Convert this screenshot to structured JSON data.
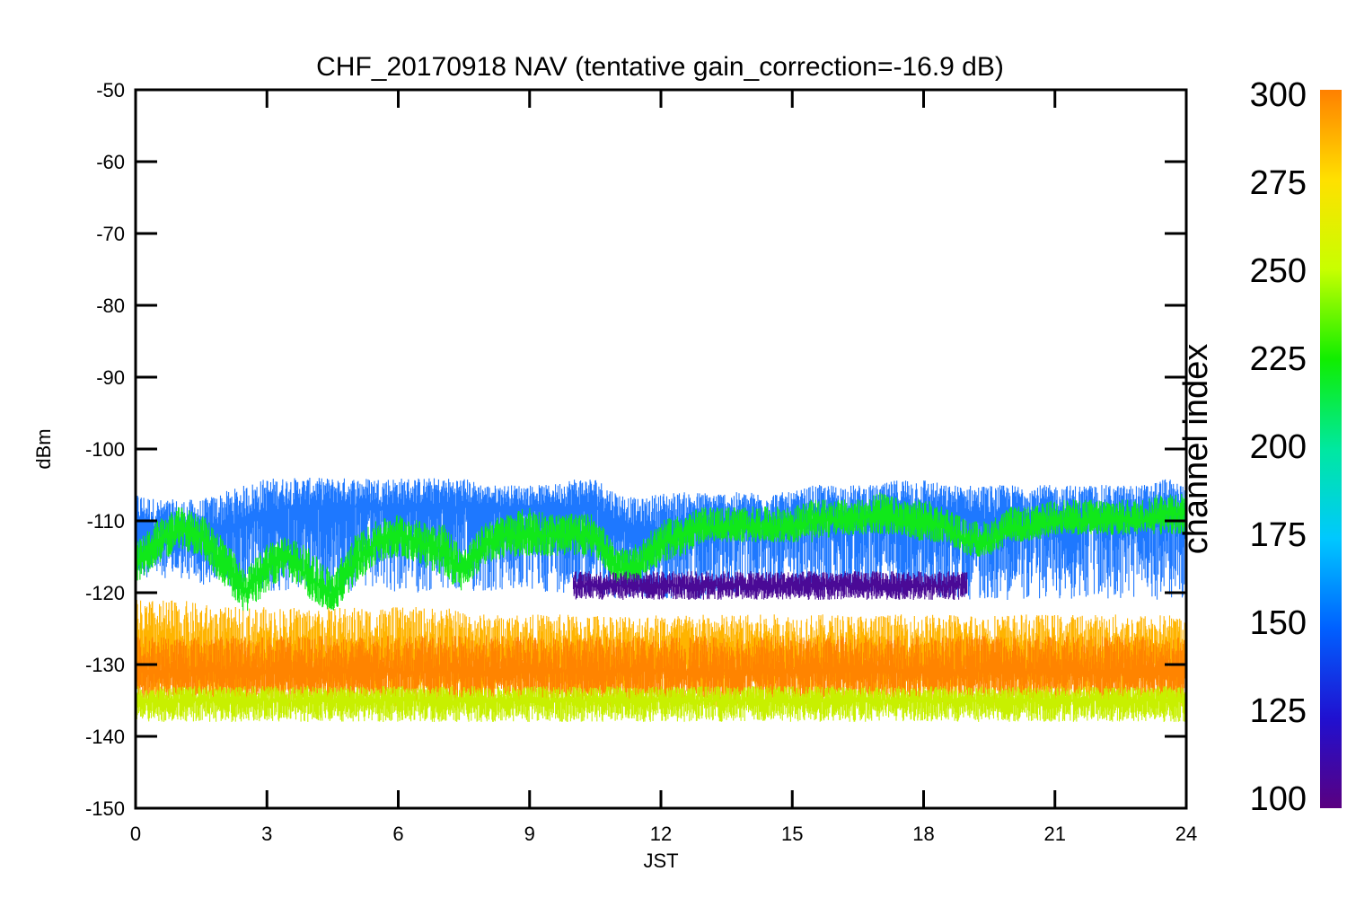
{
  "chart_data": {
    "type": "line",
    "title": "CHF_20170918 NAV (tentative gain_correction=-16.9 dB)",
    "xlabel": "JST",
    "ylabel": "dBm",
    "xlim": [
      0,
      24
    ],
    "ylim": [
      -150,
      -50
    ],
    "x_ticks": [
      "0",
      "3",
      "6",
      "9",
      "12",
      "15",
      "18",
      "21",
      "24"
    ],
    "y_ticks": [
      "-50",
      "-60",
      "-70",
      "-80",
      "-90",
      "-100",
      "-110",
      "-120",
      "-130",
      "-140",
      "-150"
    ],
    "grid": false,
    "colorbar": {
      "label": "channel index",
      "range": [
        100,
        300
      ],
      "ticks": [
        "300",
        "275",
        "250",
        "225",
        "200",
        "175",
        "150",
        "125",
        "100"
      ],
      "colors": [
        "#5a0080",
        "#2010d0",
        "#0060ff",
        "#00c8ff",
        "#00e8a0",
        "#10ee00",
        "#c8ff00",
        "#ffe000",
        "#ff8000"
      ]
    },
    "series": [
      {
        "color": "#1e78ff",
        "channel_index": 160,
        "x": [
          0,
          0.5,
          1,
          1.5,
          2,
          2.5,
          3,
          3.5,
          4,
          4.5,
          5,
          5.5,
          6,
          6.5,
          7,
          7.5,
          8,
          8.5,
          9,
          9.5,
          10,
          10.5,
          11,
          11.5,
          12,
          12.5,
          13,
          13.5,
          14,
          14.5,
          15,
          15.5,
          16,
          16.5,
          17,
          17.5,
          18,
          18.5,
          19,
          19.5,
          20,
          20.5,
          21,
          21.5,
          22,
          22.5,
          23,
          23.5,
          24
        ],
        "y": [
          -111,
          -111,
          -112,
          -112,
          -111,
          -110,
          -109,
          -108,
          -108,
          -108,
          -108,
          -108,
          -108,
          -108,
          -108,
          -108,
          -108,
          -108,
          -108,
          -108,
          -108,
          -108,
          -110,
          -111,
          -111,
          -110,
          -110,
          -110,
          -110,
          -110,
          -110,
          -109,
          -109,
          -109,
          -109,
          -109,
          -109,
          -109,
          -109,
          -110,
          -109,
          -109,
          -109,
          -109,
          -109,
          -109,
          -109,
          -109,
          -109
        ],
        "band_low": [
          -118,
          -118,
          -118,
          -119,
          -119,
          -120,
          -120,
          -120,
          -120,
          -120,
          -120,
          -120,
          -120,
          -120,
          -120,
          -120,
          -120,
          -120,
          -120,
          -120,
          -120,
          -120,
          -121,
          -121,
          -121,
          -121,
          -121,
          -120,
          -120,
          -120,
          -120,
          -120,
          -120,
          -120,
          -120,
          -120,
          -120,
          -121,
          -121,
          -121,
          -121,
          -121,
          -121,
          -121,
          -121,
          -121,
          -121,
          -121,
          -121
        ],
        "band_high": [
          -106,
          -107,
          -107,
          -107,
          -106,
          -105,
          -104,
          -104,
          -104,
          -104,
          -104,
          -104,
          -104,
          -104,
          -104,
          -104,
          -105,
          -105,
          -105,
          -105,
          -104,
          -104,
          -106,
          -107,
          -106,
          -106,
          -106,
          -106,
          -106,
          -106,
          -106,
          -105,
          -105,
          -105,
          -105,
          -104,
          -104,
          -105,
          -105,
          -105,
          -105,
          -105,
          -105,
          -105,
          -105,
          -105,
          -105,
          -104,
          -105
        ]
      },
      {
        "color": "#10e81a",
        "channel_index": 215,
        "x": [
          0,
          0.5,
          1,
          1.5,
          2,
          2.5,
          3,
          3.5,
          4,
          4.5,
          5,
          5.5,
          6,
          6.5,
          7,
          7.5,
          8,
          8.5,
          9,
          9.5,
          10,
          10.5,
          11,
          11.5,
          12,
          12.5,
          13,
          13.5,
          14,
          14.5,
          15,
          15.5,
          16,
          16.5,
          17,
          17.5,
          18,
          18.5,
          19,
          19.5,
          20,
          20.5,
          21,
          21.5,
          22,
          22.5,
          23,
          23.5,
          24
        ],
        "y": [
          -116,
          -113,
          -111,
          -112,
          -116,
          -120,
          -116,
          -115,
          -118,
          -121,
          -116,
          -113,
          -112,
          -113,
          -114,
          -117,
          -113,
          -112,
          -112,
          -112,
          -112,
          -112,
          -117,
          -116,
          -113,
          -112,
          -111,
          -111,
          -111,
          -111,
          -111,
          -110,
          -110,
          -110,
          -109,
          -110,
          -110,
          -111,
          -113,
          -113,
          -111,
          -111,
          -110,
          -110,
          -110,
          -110,
          -110,
          -109,
          -109
        ],
        "band_low": [
          -119,
          -116,
          -114,
          -115,
          -119,
          -123,
          -120,
          -118,
          -121,
          -123,
          -119,
          -116,
          -115,
          -116,
          -118,
          -120,
          -116,
          -115,
          -115,
          -115,
          -115,
          -115,
          -119,
          -119,
          -116,
          -115,
          -113,
          -113,
          -113,
          -113,
          -113,
          -113,
          -112,
          -112,
          -112,
          -112,
          -113,
          -113,
          -115,
          -115,
          -113,
          -113,
          -112,
          -112,
          -112,
          -112,
          -112,
          -112,
          -112
        ],
        "band_high": [
          -113,
          -110,
          -108,
          -109,
          -112,
          -117,
          -113,
          -112,
          -114,
          -117,
          -112,
          -110,
          -109,
          -110,
          -110,
          -114,
          -110,
          -109,
          -108,
          -109,
          -109,
          -109,
          -114,
          -113,
          -110,
          -109,
          -108,
          -108,
          -108,
          -108,
          -108,
          -107,
          -107,
          -107,
          -106,
          -107,
          -107,
          -108,
          -110,
          -110,
          -108,
          -108,
          -107,
          -107,
          -107,
          -107,
          -107,
          -106,
          -106
        ]
      },
      {
        "color": "#4a0a96",
        "channel_index": 110,
        "x": [
          10,
          10.5,
          11,
          11.5,
          12,
          12.5,
          13,
          13.5,
          14,
          14.5,
          15,
          15.5,
          16,
          16.5,
          17,
          17.5,
          18,
          18.5,
          19
        ],
        "y": [
          -119,
          -119,
          -119,
          -119,
          -119,
          -119,
          -119,
          -119,
          -119,
          -119,
          -119,
          -119,
          -119,
          -119,
          -119,
          -119,
          -119,
          -119,
          -119
        ],
        "band_low": [
          -121,
          -121,
          -121,
          -121,
          -121,
          -121,
          -121,
          -121,
          -121,
          -121,
          -121,
          -121,
          -121,
          -121,
          -121,
          -121,
          -121,
          -121,
          -121
        ],
        "band_high": [
          -117,
          -117,
          -117,
          -117,
          -117,
          -117,
          -117,
          -117,
          -117,
          -117,
          -117,
          -117,
          -117,
          -117,
          -117,
          -117,
          -117,
          -117,
          -117
        ]
      },
      {
        "color": "#ffb400",
        "channel_index": 285,
        "x": [
          0,
          1,
          2,
          3,
          4,
          5,
          6,
          7,
          8,
          9,
          10,
          11,
          12,
          13,
          14,
          15,
          16,
          17,
          18,
          19,
          20,
          21,
          22,
          23,
          24
        ],
        "y": [
          -129,
          -129,
          -129,
          -129,
          -129,
          -129,
          -129,
          -129,
          -129,
          -129,
          -129,
          -129,
          -129,
          -129,
          -129,
          -129,
          -129,
          -129,
          -129,
          -129,
          -129,
          -129,
          -129,
          -129,
          -129
        ],
        "band_low": [
          -136,
          -136,
          -136,
          -136,
          -136,
          -136,
          -136,
          -136,
          -136,
          -136,
          -136,
          -136,
          -136,
          -136,
          -136,
          -136,
          -136,
          -136,
          -136,
          -136,
          -136,
          -136,
          -136,
          -136,
          -136
        ],
        "band_high": [
          -121,
          -121,
          -122,
          -122,
          -122,
          -122,
          -122,
          -122,
          -123,
          -123,
          -123,
          -123,
          -123,
          -123,
          -123,
          -123,
          -123,
          -123,
          -123,
          -123,
          -123,
          -123,
          -123,
          -123,
          -123
        ]
      },
      {
        "color": "#ff8400",
        "channel_index": 298,
        "x": [
          0,
          1,
          2,
          3,
          4,
          5,
          6,
          7,
          8,
          9,
          10,
          11,
          12,
          13,
          14,
          15,
          16,
          17,
          18,
          19,
          20,
          21,
          22,
          23,
          24
        ],
        "y": [
          -131,
          -131,
          -131,
          -131,
          -131,
          -131,
          -131,
          -131,
          -131,
          -131,
          -131,
          -131,
          -131,
          -131,
          -131,
          -131,
          -131,
          -131,
          -131,
          -131,
          -131,
          -131,
          -131,
          -131,
          -131
        ],
        "band_low": [
          -135,
          -135,
          -135,
          -135,
          -135,
          -135,
          -135,
          -135,
          -135,
          -135,
          -135,
          -135,
          -135,
          -135,
          -135,
          -135,
          -135,
          -135,
          -135,
          -135,
          -135,
          -135,
          -135,
          -135,
          -135
        ],
        "band_high": [
          -126,
          -126,
          -126,
          -126,
          -126,
          -126,
          -126,
          -126,
          -126,
          -126,
          -126,
          -126,
          -126,
          -126,
          -126,
          -126,
          -126,
          -126,
          -126,
          -126,
          -126,
          -126,
          -126,
          -126,
          -126
        ]
      },
      {
        "color": "#c8f000",
        "channel_index": 250,
        "x": [
          0,
          1,
          2,
          3,
          4,
          5,
          6,
          7,
          8,
          9,
          10,
          11,
          12,
          13,
          14,
          15,
          16,
          17,
          18,
          19,
          20,
          21,
          22,
          23,
          24
        ],
        "y": [
          -135,
          -135,
          -135,
          -135,
          -135,
          -135,
          -135,
          -135,
          -135,
          -135,
          -135,
          -135,
          -135,
          -135,
          -135,
          -135,
          -135,
          -135,
          -135,
          -135,
          -135,
          -135,
          -135,
          -135,
          -135
        ],
        "band_low": [
          -138,
          -138,
          -138,
          -138,
          -138,
          -138,
          -138,
          -138,
          -138,
          -138,
          -138,
          -138,
          -138,
          -138,
          -138,
          -138,
          -138,
          -138,
          -138,
          -138,
          -138,
          -138,
          -138,
          -138,
          -138
        ],
        "band_high": [
          -133,
          -133,
          -133,
          -133,
          -133,
          -133,
          -133,
          -133,
          -133,
          -133,
          -133,
          -133,
          -133,
          -133,
          -133,
          -133,
          -133,
          -133,
          -133,
          -133,
          -133,
          -133,
          -133,
          -133,
          -133
        ]
      }
    ]
  }
}
